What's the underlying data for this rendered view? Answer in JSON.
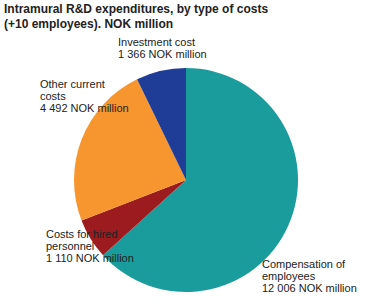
{
  "chart_data": {
    "type": "pie",
    "title": "Intramural R&D expenditures, by type of costs (+10 employees). NOK million",
    "categories": [
      "Compensation of employees",
      "Costs for hired personnel",
      "Other current costs",
      "Investment cost"
    ],
    "values": [
      12006,
      1110,
      4492,
      1366
    ],
    "value_labels": [
      "12 006 NOK million",
      "1 110 NOK million",
      "4 492 NOK million",
      "1 366 NOK million"
    ],
    "colors": [
      "#1a9c9c",
      "#9b1b1f",
      "#f7962e",
      "#1f3c96"
    ],
    "data_labels": true
  }
}
